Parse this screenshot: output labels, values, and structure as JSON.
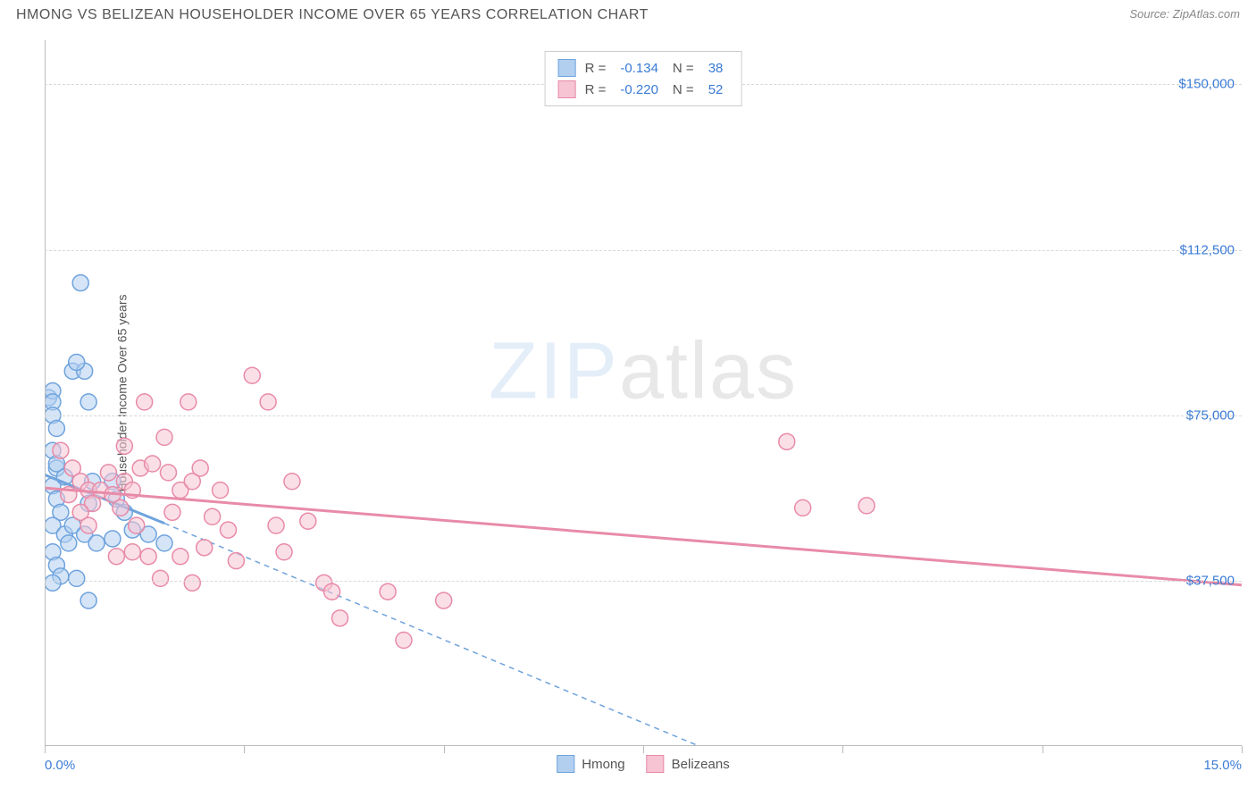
{
  "title": "HMONG VS BELIZEAN HOUSEHOLDER INCOME OVER 65 YEARS CORRELATION CHART",
  "source_prefix": "Source: ",
  "source_name": "ZipAtlas.com",
  "y_axis_label": "Householder Income Over 65 years",
  "watermark_zip": "ZIP",
  "watermark_atlas": "atlas",
  "chart": {
    "type": "scatter",
    "background_color": "#ffffff",
    "grid_color": "#d8d8d8",
    "axis_color": "#bbbbbb",
    "label_color": "#3a7bd5",
    "xlim": [
      0,
      15
    ],
    "ylim": [
      0,
      160000
    ],
    "x_ticks": [
      0,
      2.5,
      5,
      7.5,
      10,
      12.5,
      15
    ],
    "x_tick_labels": {
      "0": "0.0%",
      "15": "15.0%"
    },
    "y_gridlines": [
      37500,
      75000,
      112500,
      150000
    ],
    "y_tick_labels": {
      "37500": "$37,500",
      "75000": "$75,000",
      "112500": "$112,500",
      "150000": "$150,000"
    },
    "marker_radius": 9,
    "marker_opacity": 0.55,
    "series": [
      {
        "name": "Hmong",
        "fill_color": "#b3cff0",
        "stroke_color": "#6fa3dd",
        "r_value": "-0.134",
        "n_value": "38",
        "points": [
          [
            0.05,
            79000
          ],
          [
            0.1,
            80500
          ],
          [
            0.1,
            78000
          ],
          [
            0.1,
            75000
          ],
          [
            0.15,
            72000
          ],
          [
            0.1,
            67000
          ],
          [
            0.15,
            63000
          ],
          [
            0.1,
            59000
          ],
          [
            0.15,
            56000
          ],
          [
            0.2,
            53000
          ],
          [
            0.1,
            50000
          ],
          [
            0.25,
            48000
          ],
          [
            0.3,
            46000
          ],
          [
            0.1,
            44000
          ],
          [
            0.15,
            41000
          ],
          [
            0.35,
            85000
          ],
          [
            0.45,
            105000
          ],
          [
            0.5,
            85000
          ],
          [
            0.55,
            78000
          ],
          [
            0.6,
            60000
          ],
          [
            0.55,
            55000
          ],
          [
            0.35,
            50000
          ],
          [
            0.5,
            48000
          ],
          [
            0.65,
            46000
          ],
          [
            0.85,
            60000
          ],
          [
            0.9,
            56000
          ],
          [
            1.0,
            53000
          ],
          [
            0.85,
            47000
          ],
          [
            1.1,
            49000
          ],
          [
            1.3,
            48000
          ],
          [
            1.5,
            46000
          ],
          [
            0.2,
            38500
          ],
          [
            0.4,
            38000
          ],
          [
            0.55,
            33000
          ],
          [
            0.1,
            37000
          ],
          [
            0.4,
            87000
          ],
          [
            0.15,
            64000
          ],
          [
            0.25,
            61000
          ]
        ],
        "trend_solid": {
          "x1": 0,
          "y1": 61500,
          "x2": 1.5,
          "y2": 50500
        },
        "trend_dashed": {
          "x1": 1.5,
          "y1": 50500,
          "x2": 8.2,
          "y2": 0
        }
      },
      {
        "name": "Belizeans",
        "fill_color": "#f6c4d3",
        "stroke_color": "#e88ba8",
        "r_value": "-0.220",
        "n_value": "52",
        "points": [
          [
            0.2,
            67000
          ],
          [
            0.35,
            63000
          ],
          [
            0.45,
            60000
          ],
          [
            0.55,
            58000
          ],
          [
            0.6,
            55000
          ],
          [
            0.7,
            58000
          ],
          [
            0.8,
            62000
          ],
          [
            0.85,
            57000
          ],
          [
            0.95,
            54000
          ],
          [
            1.0,
            60000
          ],
          [
            1.1,
            58000
          ],
          [
            1.2,
            63000
          ],
          [
            1.25,
            78000
          ],
          [
            1.35,
            64000
          ],
          [
            1.5,
            70000
          ],
          [
            1.55,
            62000
          ],
          [
            1.6,
            53000
          ],
          [
            1.7,
            58000
          ],
          [
            1.8,
            78000
          ],
          [
            1.85,
            60000
          ],
          [
            1.95,
            63000
          ],
          [
            2.1,
            52000
          ],
          [
            2.2,
            58000
          ],
          [
            2.3,
            49000
          ],
          [
            2.4,
            42000
          ],
          [
            2.6,
            84000
          ],
          [
            2.8,
            78000
          ],
          [
            2.9,
            50000
          ],
          [
            3.0,
            44000
          ],
          [
            3.1,
            60000
          ],
          [
            3.3,
            51000
          ],
          [
            3.5,
            37000
          ],
          [
            3.6,
            35000
          ],
          [
            3.7,
            29000
          ],
          [
            4.5,
            24000
          ],
          [
            4.3,
            35000
          ],
          [
            5.0,
            33000
          ],
          [
            0.9,
            43000
          ],
          [
            1.1,
            44000
          ],
          [
            1.3,
            43000
          ],
          [
            1.45,
            38000
          ],
          [
            1.85,
            37000
          ],
          [
            2.0,
            45000
          ],
          [
            1.0,
            68000
          ],
          [
            0.45,
            53000
          ],
          [
            0.55,
            50000
          ],
          [
            0.3,
            57000
          ],
          [
            9.3,
            69000
          ],
          [
            9.5,
            54000
          ],
          [
            10.3,
            54500
          ],
          [
            1.15,
            50000
          ],
          [
            1.7,
            43000
          ]
        ],
        "trend_solid": {
          "x1": 0,
          "y1": 58500,
          "x2": 15,
          "y2": 36500
        }
      }
    ]
  },
  "stat_legend": {
    "r_label": "R = ",
    "n_label": "N = "
  }
}
